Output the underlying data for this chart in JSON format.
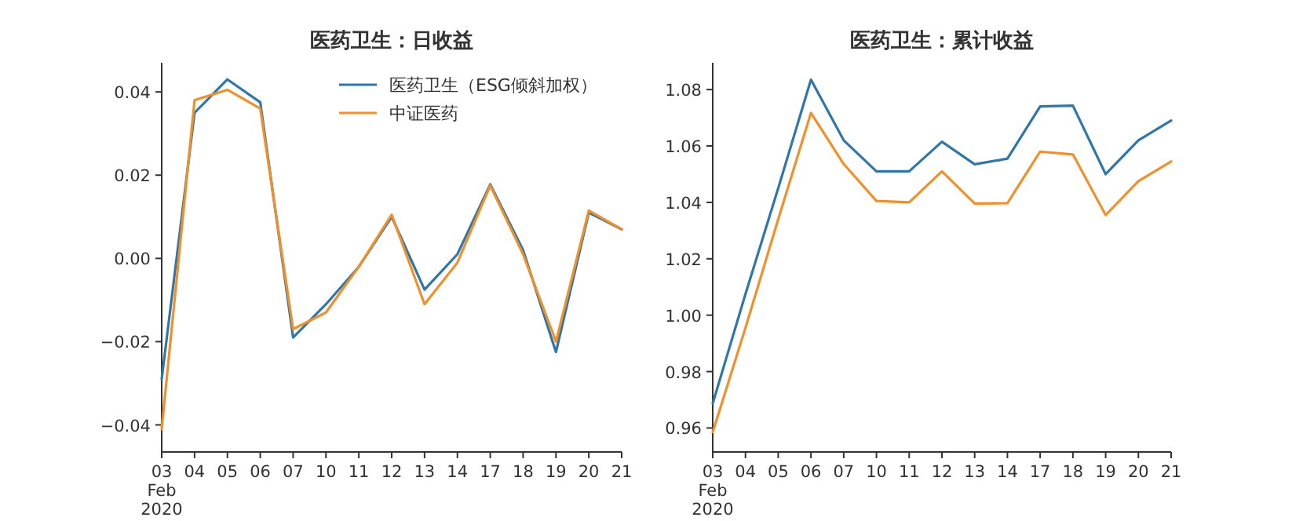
{
  "chart_data": [
    {
      "type": "line",
      "title": "医药卫生：日收益",
      "categories": [
        "03\nFeb\n2020",
        "04",
        "05",
        "06",
        "07",
        "10",
        "11",
        "12",
        "13",
        "14",
        "17",
        "18",
        "19",
        "20",
        "21"
      ],
      "series": [
        {
          "name": "医药卫生（ESG倾斜加权）",
          "color": "#2f77a8",
          "values": [
            -0.029,
            0.035,
            0.043,
            0.0375,
            -0.019,
            -0.011,
            -0.002,
            0.01,
            -0.0075,
            0.001,
            0.0178,
            0.002,
            -0.0225,
            0.011,
            0.007
          ]
        },
        {
          "name": "中证医药",
          "color": "#f0902a",
          "values": [
            -0.041,
            0.038,
            0.0405,
            0.036,
            -0.017,
            -0.013,
            -0.002,
            0.0105,
            -0.011,
            -0.001,
            0.0175,
            0.001,
            -0.02,
            0.0115,
            0.007
          ]
        }
      ],
      "ylim": [
        -0.0465,
        0.047
      ],
      "yticks": [
        {
          "value": -0.04,
          "label": "−0.04"
        },
        {
          "value": -0.02,
          "label": "−0.02"
        },
        {
          "value": 0,
          "label": "0.00"
        },
        {
          "value": 0.02,
          "label": "0.02"
        },
        {
          "value": 0.04,
          "label": "0.04"
        }
      ],
      "legend": "top right"
    },
    {
      "type": "line",
      "title": "医药卫生：累计收益",
      "categories": [
        "03\nFeb\n2020",
        "04",
        "05",
        "06",
        "07",
        "10",
        "11",
        "12",
        "13",
        "14",
        "17",
        "18",
        "19",
        "20",
        "21"
      ],
      "series": [
        {
          "color": "#2f77a8",
          "values": [
            0.9687,
            1.0075,
            1.045,
            1.0835,
            1.062,
            1.051,
            1.051,
            1.0615,
            1.0535,
            1.0555,
            1.074,
            1.0743,
            1.05,
            1.062,
            1.069
          ]
        },
        {
          "color": "#f0902a",
          "values": [
            0.9585,
            0.9955,
            1.034,
            1.0717,
            1.0536,
            1.0405,
            1.04,
            1.051,
            1.0396,
            1.0397,
            1.058,
            1.057,
            1.0355,
            1.0475,
            1.0545
          ]
        }
      ],
      "ylim": [
        0.9515,
        1.0895
      ],
      "yticks": [
        {
          "value": 0.96,
          "label": "0.96"
        },
        {
          "value": 0.98,
          "label": "0.98"
        },
        {
          "value": 1.0,
          "label": "1.00"
        },
        {
          "value": 1.02,
          "label": "1.02"
        },
        {
          "value": 1.04,
          "label": "1.04"
        },
        {
          "value": 1.06,
          "label": "1.06"
        },
        {
          "value": 1.08,
          "label": "1.08"
        }
      ]
    }
  ]
}
